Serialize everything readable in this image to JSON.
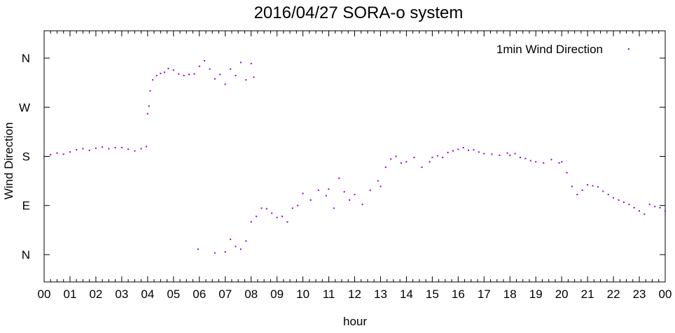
{
  "chart_data": {
    "type": "scatter",
    "title": "2016/04/27 SORA-o system",
    "xlabel": "hour",
    "ylabel": "Wind Direction",
    "x_ticks": [
      "00",
      "01",
      "02",
      "03",
      "04",
      "05",
      "06",
      "07",
      "08",
      "09",
      "10",
      "11",
      "12",
      "13",
      "14",
      "15",
      "16",
      "17",
      "18",
      "19",
      "20",
      "21",
      "22",
      "23",
      "00"
    ],
    "xlim": [
      0,
      24
    ],
    "y_ticks": [
      {
        "value": 0,
        "label": "N"
      },
      {
        "value": 90,
        "label": "E"
      },
      {
        "value": 180,
        "label": "S"
      },
      {
        "value": 270,
        "label": "W"
      },
      {
        "value": 360,
        "label": "N"
      }
    ],
    "ylim": [
      -50,
      410
    ],
    "grid": false,
    "legend_position": "top-right",
    "series": [
      {
        "name": "1min Wind Direction",
        "color": "#9400d3",
        "marker": "dot",
        "points": [
          [
            0.0,
            180
          ],
          [
            0.25,
            183
          ],
          [
            0.5,
            186
          ],
          [
            0.75,
            184
          ],
          [
            1.0,
            188
          ],
          [
            1.25,
            192
          ],
          [
            1.5,
            194
          ],
          [
            1.75,
            191
          ],
          [
            2.0,
            195
          ],
          [
            2.25,
            197
          ],
          [
            2.5,
            194
          ],
          [
            2.75,
            196
          ],
          [
            3.0,
            196
          ],
          [
            3.25,
            193
          ],
          [
            3.5,
            190
          ],
          [
            3.75,
            194
          ],
          [
            3.95,
            198
          ],
          [
            4.0,
            258
          ],
          [
            4.05,
            272
          ],
          [
            4.1,
            300
          ],
          [
            4.2,
            320
          ],
          [
            4.35,
            328
          ],
          [
            4.5,
            332
          ],
          [
            4.65,
            334
          ],
          [
            4.8,
            341
          ],
          [
            5.0,
            338
          ],
          [
            5.2,
            331
          ],
          [
            5.4,
            328
          ],
          [
            5.6,
            330
          ],
          [
            5.8,
            331
          ],
          [
            6.0,
            345
          ],
          [
            6.2,
            355
          ],
          [
            6.4,
            340
          ],
          [
            6.6,
            322
          ],
          [
            6.8,
            330
          ],
          [
            7.0,
            312
          ],
          [
            7.2,
            340
          ],
          [
            7.4,
            328
          ],
          [
            7.6,
            352
          ],
          [
            7.8,
            320
          ],
          [
            8.0,
            350
          ],
          [
            8.1,
            325
          ],
          [
            5.95,
            10
          ],
          [
            6.6,
            3
          ],
          [
            7.0,
            5
          ],
          [
            7.2,
            28
          ],
          [
            7.4,
            15
          ],
          [
            7.6,
            10
          ],
          [
            7.8,
            25
          ],
          [
            8.0,
            60
          ],
          [
            8.2,
            70
          ],
          [
            8.4,
            85
          ],
          [
            8.6,
            84
          ],
          [
            8.8,
            76
          ],
          [
            9.0,
            68
          ],
          [
            9.2,
            70
          ],
          [
            9.4,
            60
          ],
          [
            9.6,
            85
          ],
          [
            9.8,
            90
          ],
          [
            10.0,
            112
          ],
          [
            10.3,
            100
          ],
          [
            10.6,
            118
          ],
          [
            10.9,
            108
          ],
          [
            11.0,
            120
          ],
          [
            11.2,
            85
          ],
          [
            11.4,
            140
          ],
          [
            11.6,
            115
          ],
          [
            11.8,
            100
          ],
          [
            12.0,
            110
          ],
          [
            12.3,
            92
          ],
          [
            12.6,
            118
          ],
          [
            12.9,
            135
          ],
          [
            13.0,
            125
          ],
          [
            13.2,
            160
          ],
          [
            13.4,
            175
          ],
          [
            13.6,
            180
          ],
          [
            13.8,
            168
          ],
          [
            14.0,
            170
          ],
          [
            14.3,
            178
          ],
          [
            14.6,
            160
          ],
          [
            14.9,
            170
          ],
          [
            15.0,
            178
          ],
          [
            15.2,
            181
          ],
          [
            15.4,
            178
          ],
          [
            15.6,
            187
          ],
          [
            15.8,
            190
          ],
          [
            16.0,
            193
          ],
          [
            16.2,
            196
          ],
          [
            16.4,
            191
          ],
          [
            16.6,
            192
          ],
          [
            16.8,
            188
          ],
          [
            17.0,
            185
          ],
          [
            17.3,
            184
          ],
          [
            17.6,
            182
          ],
          [
            17.9,
            186
          ],
          [
            18.0,
            182
          ],
          [
            18.2,
            185
          ],
          [
            18.4,
            178
          ],
          [
            18.6,
            176
          ],
          [
            18.8,
            172
          ],
          [
            19.0,
            170
          ],
          [
            19.3,
            168
          ],
          [
            19.6,
            174
          ],
          [
            19.9,
            168
          ],
          [
            20.0,
            170
          ],
          [
            20.2,
            150
          ],
          [
            20.4,
            125
          ],
          [
            20.6,
            110
          ],
          [
            20.8,
            118
          ],
          [
            21.0,
            128
          ],
          [
            21.2,
            126
          ],
          [
            21.4,
            124
          ],
          [
            21.6,
            116
          ],
          [
            21.8,
            110
          ],
          [
            22.0,
            104
          ],
          [
            22.2,
            100
          ],
          [
            22.4,
            96
          ],
          [
            22.6,
            92
          ],
          [
            22.8,
            86
          ],
          [
            23.0,
            80
          ],
          [
            23.2,
            74
          ],
          [
            23.4,
            92
          ],
          [
            23.6,
            88
          ],
          [
            23.8,
            86
          ],
          [
            24.0,
            80
          ]
        ]
      }
    ]
  }
}
